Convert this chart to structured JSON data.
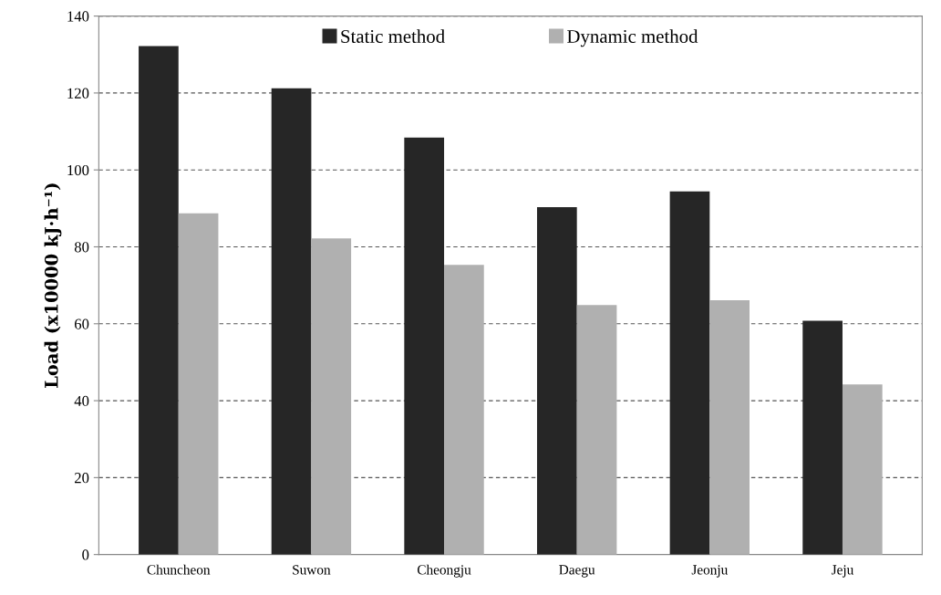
{
  "chart_data": {
    "type": "bar",
    "ylabel": "Load (x10000 kJ·h⁻¹)",
    "categories": [
      "Chuncheon",
      "Suwon",
      "Cheongju",
      "Daegu",
      "Jeonju",
      "Jeju"
    ],
    "series": [
      {
        "name": "Static method",
        "color": "#262626",
        "values": [
          132.2,
          121.2,
          108.4,
          90.3,
          94.4,
          60.8
        ]
      },
      {
        "name": "Dynamic method",
        "color": "#b0b0b0",
        "values": [
          88.7,
          82.2,
          75.3,
          64.9,
          66.1,
          44.2
        ]
      }
    ],
    "ylim": [
      0,
      140
    ],
    "yticks": [
      0,
      20,
      40,
      60,
      80,
      100,
      120,
      140
    ],
    "grid": "y",
    "legend": "top",
    "line_style": "dashed"
  }
}
